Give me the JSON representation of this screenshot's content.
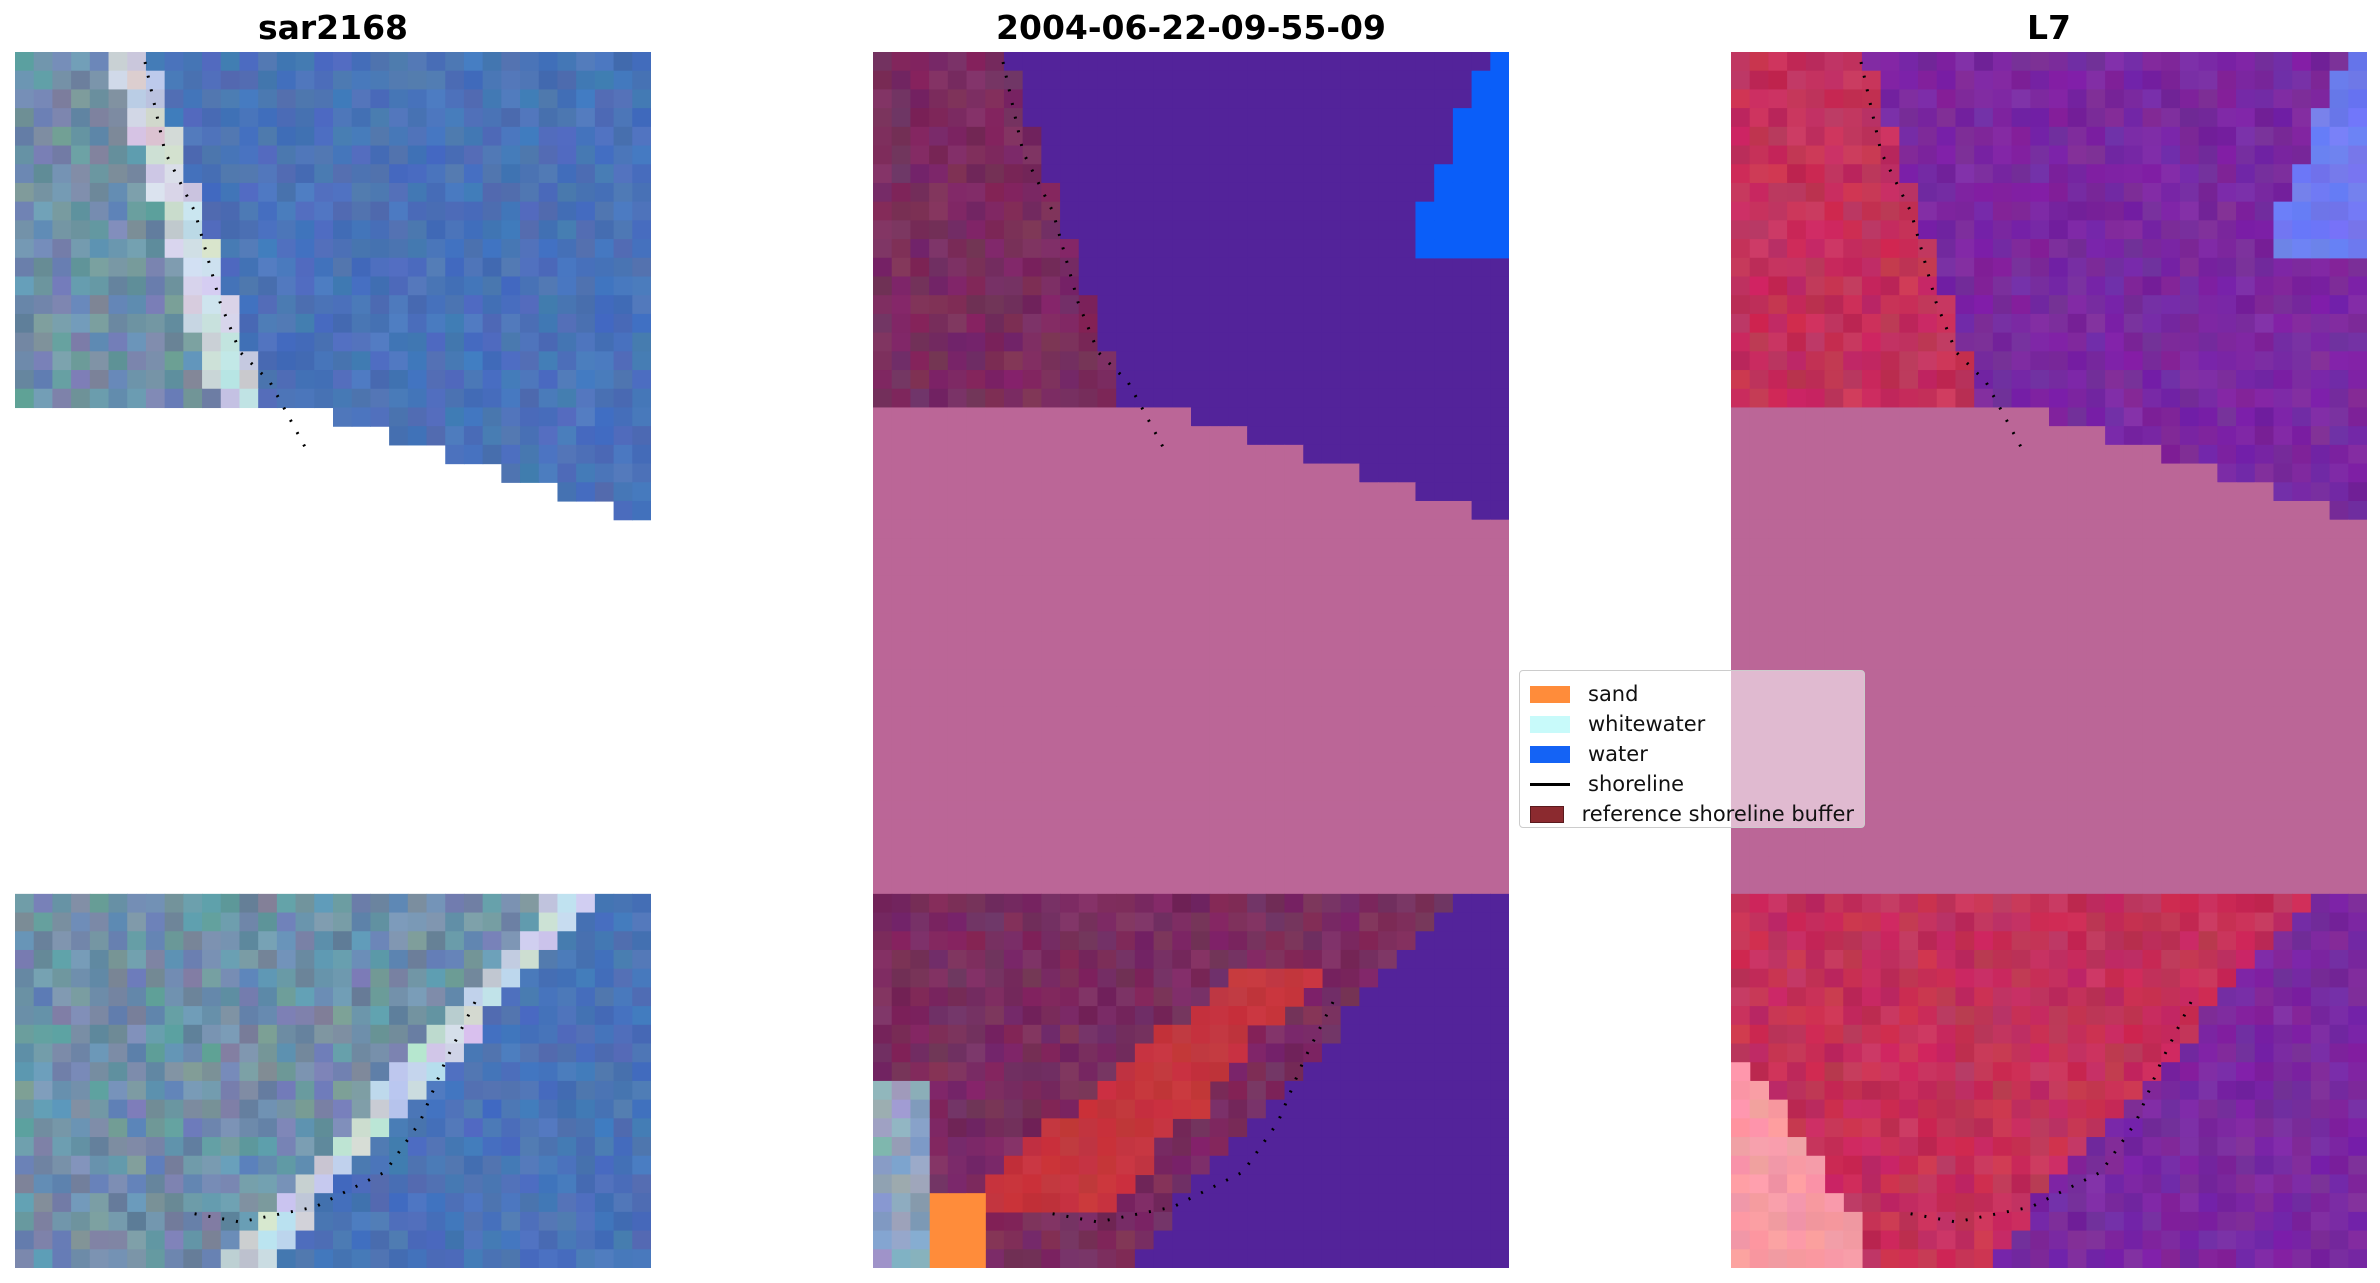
{
  "panels": [
    {
      "title": "sar2168"
    },
    {
      "title": "2004-06-22-09-55-09"
    },
    {
      "title": "L7"
    }
  ],
  "legend": {
    "items": [
      {
        "label": "sand",
        "color": "#ff8c3a"
      },
      {
        "label": "whitewater",
        "color": "#c8fafa"
      },
      {
        "label": "water",
        "color": "#1463f5"
      },
      {
        "label": "shoreline",
        "color": "#000000"
      },
      {
        "label": "reference shoreline buffer",
        "color": "#8b2a2f"
      }
    ]
  },
  "colors": {
    "background": "#ffffff",
    "rgb_water": "#4a73b8",
    "rgb_land": "#6f8fa8",
    "rgb_dark_water": "#1e3f94",
    "class_water": "#53239a",
    "class_land": "#7a2c5f",
    "class_buffer": "#bb6697",
    "class_sand": "#ff8c3a",
    "class_blue": "#0a5ef9",
    "class_red": "#c5353d",
    "mndwi_water": "#7a28a0",
    "mndwi_land": "#c4305a",
    "mndwi_buffer": "#bb6697",
    "mndwi_pink": "#f79aa6"
  }
}
